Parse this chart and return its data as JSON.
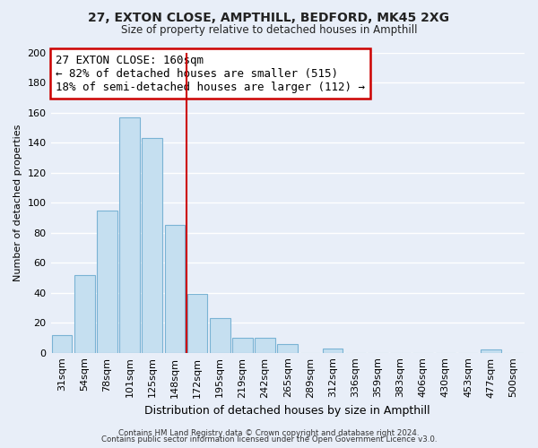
{
  "title": "27, EXTON CLOSE, AMPTHILL, BEDFORD, MK45 2XG",
  "subtitle": "Size of property relative to detached houses in Ampthill",
  "xlabel": "Distribution of detached houses by size in Ampthill",
  "ylabel": "Number of detached properties",
  "bar_labels": [
    "31sqm",
    "54sqm",
    "78sqm",
    "101sqm",
    "125sqm",
    "148sqm",
    "172sqm",
    "195sqm",
    "219sqm",
    "242sqm",
    "265sqm",
    "289sqm",
    "312sqm",
    "336sqm",
    "359sqm",
    "383sqm",
    "406sqm",
    "430sqm",
    "453sqm",
    "477sqm",
    "500sqm"
  ],
  "bar_values": [
    12,
    52,
    95,
    157,
    143,
    85,
    39,
    23,
    10,
    10,
    6,
    0,
    3,
    0,
    0,
    0,
    0,
    0,
    0,
    2,
    0
  ],
  "bar_color": "#c5dff0",
  "bar_edge_color": "#7ab3d4",
  "ylim": [
    0,
    200
  ],
  "yticks": [
    0,
    20,
    40,
    60,
    80,
    100,
    120,
    140,
    160,
    180,
    200
  ],
  "vline_x_index": 6,
  "vline_color": "#cc0000",
  "annotation_title": "27 EXTON CLOSE: 160sqm",
  "annotation_line1": "← 82% of detached houses are smaller (515)",
  "annotation_line2": "18% of semi-detached houses are larger (112) →",
  "annotation_box_facecolor": "#ffffff",
  "annotation_box_edgecolor": "#cc0000",
  "footer1": "Contains HM Land Registry data © Crown copyright and database right 2024.",
  "footer2": "Contains public sector information licensed under the Open Government Licence v3.0.",
  "background_color": "#e8eef8",
  "grid_color": "#ffffff",
  "title_fontsize": 10,
  "subtitle_fontsize": 8.5,
  "ylabel_fontsize": 8,
  "xlabel_fontsize": 9,
  "tick_fontsize": 8,
  "ann_fontsize": 9
}
